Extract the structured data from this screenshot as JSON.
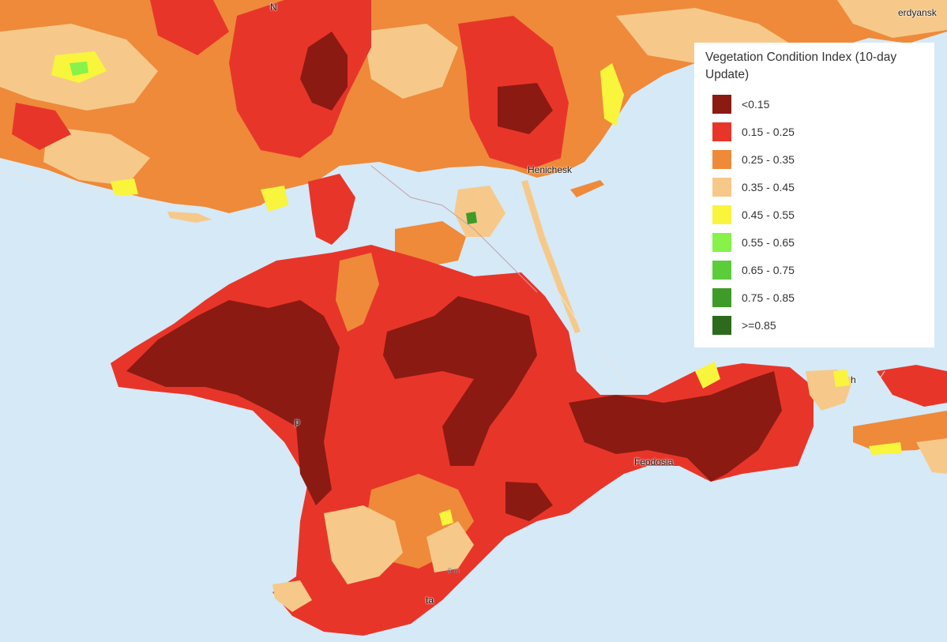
{
  "colors": {
    "water": "#d6e9f6",
    "dark_red": "#8b1a12",
    "red": "#e8352a",
    "orange": "#ee8a3a",
    "light_orange": "#f6c98a",
    "yellow": "#f8f53c",
    "light_green": "#86f24a",
    "green": "#5ccd3a",
    "med_green": "#3f9b28",
    "dark_green": "#2d6a1e"
  },
  "legend": {
    "title": "Vegetation Condition Index (10-day Update)",
    "items": [
      {
        "label": "<0.15",
        "color": "#8b1a12"
      },
      {
        "label": "0.15 - 0.25",
        "color": "#e8352a"
      },
      {
        "label": "0.25 - 0.35",
        "color": "#ee8a3a"
      },
      {
        "label": "0.35 - 0.45",
        "color": "#f6c98a"
      },
      {
        "label": "0.45 - 0.55",
        "color": "#f8f53c"
      },
      {
        "label": "0.55 - 0.65",
        "color": "#86f24a"
      },
      {
        "label": "0.65 - 0.75",
        "color": "#5ccd3a"
      },
      {
        "label": "0.75 - 0.85",
        "color": "#3f9b28"
      },
      {
        "label": ">=0.85",
        "color": "#2d6a1e"
      }
    ]
  },
  "places": {
    "berdyansk": "erdyansk",
    "henichesk": "Henichesk",
    "feodosia": "Feodosia",
    "kerch": "h",
    "yalta": "ta",
    "simferopol": "p",
    "north_n": "N"
  },
  "depth_label": "6 m"
}
